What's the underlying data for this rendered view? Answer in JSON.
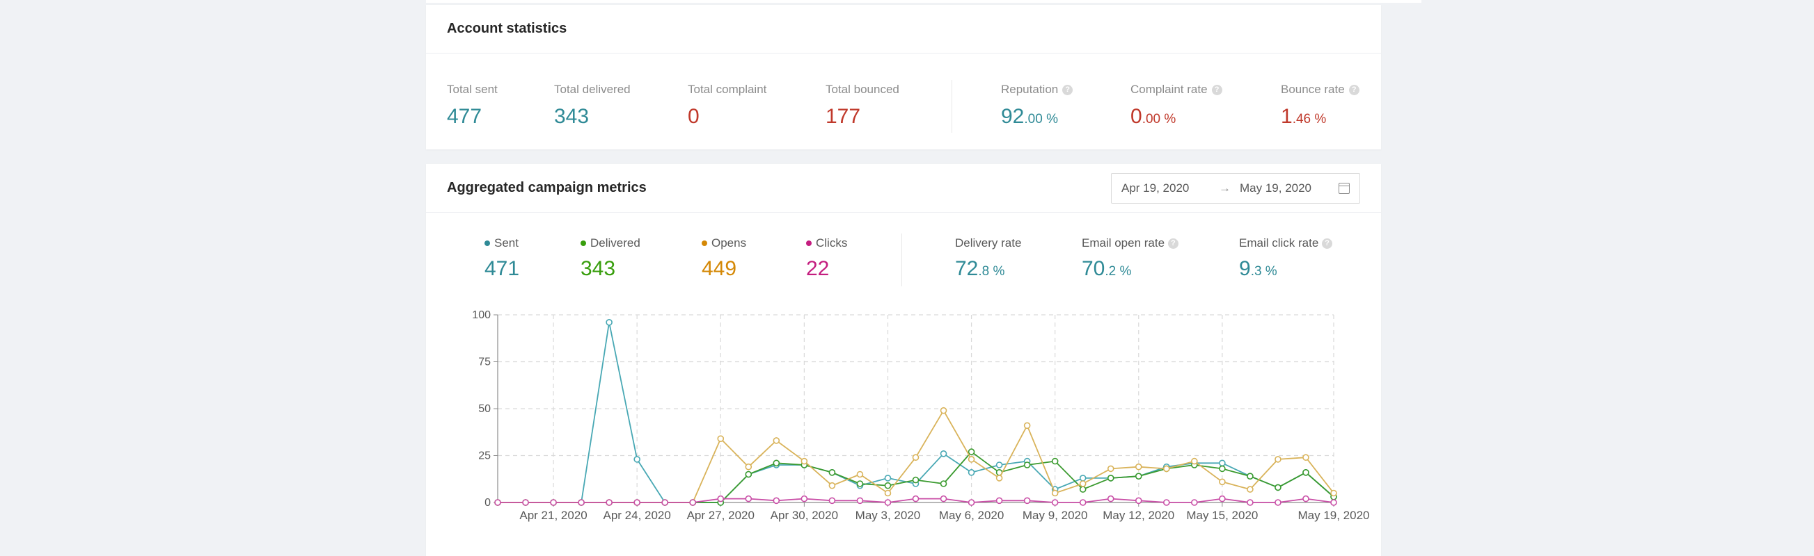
{
  "account_stats": {
    "title": "Account statistics",
    "stats": [
      {
        "label": "Total sent",
        "value": "477",
        "color": "#2f8a96"
      },
      {
        "label": "Total delivered",
        "value": "343",
        "color": "#2f8a96"
      },
      {
        "label": "Total complaint",
        "value": "0",
        "color": "#c0392b"
      },
      {
        "label": "Total bounced",
        "value": "177",
        "color": "#c0392b"
      }
    ],
    "rates": [
      {
        "label": "Reputation",
        "int": "92",
        "frac": ".00 %",
        "color": "#2f8a96",
        "help": "?"
      },
      {
        "label": "Complaint rate",
        "int": "0",
        "frac": ".00 %",
        "color": "#c0392b",
        "help": "?"
      },
      {
        "label": "Bounce rate",
        "int": "1",
        "frac": ".46 %",
        "color": "#c0392b",
        "help": "?"
      }
    ]
  },
  "campaign_metrics": {
    "title": "Aggregated campaign metrics",
    "date_range": {
      "start": "Apr 19, 2020",
      "separator": "→",
      "end": "May 19, 2020"
    },
    "legend": [
      {
        "label": "Sent",
        "value": "471",
        "color": "#2f8a96"
      },
      {
        "label": "Delivered",
        "value": "343",
        "color": "#389e0d"
      },
      {
        "label": "Opens",
        "value": "449",
        "color": "#d48806"
      },
      {
        "label": "Clicks",
        "value": "22",
        "color": "#c41d7f"
      }
    ],
    "rates": [
      {
        "label": "Delivery rate",
        "int": "72",
        "frac": ".8 %",
        "help": ""
      },
      {
        "label": "Email open rate",
        "int": "70",
        "frac": ".2 %",
        "help": "?"
      },
      {
        "label": "Email click rate",
        "int": "9",
        "frac": ".3 %",
        "help": "?"
      }
    ]
  },
  "chart_data": {
    "type": "line",
    "x": [
      "Apr 19, 2020",
      "Apr 20, 2020",
      "Apr 21, 2020",
      "Apr 22, 2020",
      "Apr 23, 2020",
      "Apr 24, 2020",
      "Apr 25, 2020",
      "Apr 26, 2020",
      "Apr 27, 2020",
      "Apr 28, 2020",
      "Apr 29, 2020",
      "Apr 30, 2020",
      "May 1, 2020",
      "May 2, 2020",
      "May 3, 2020",
      "May 4, 2020",
      "May 5, 2020",
      "May 6, 2020",
      "May 7, 2020",
      "May 8, 2020",
      "May 9, 2020",
      "May 10, 2020",
      "May 11, 2020",
      "May 12, 2020",
      "May 13, 2020",
      "May 14, 2020",
      "May 15, 2020",
      "May 16, 2020",
      "May 17, 2020",
      "May 18, 2020",
      "May 19, 2020"
    ],
    "tick_labels": [
      "Apr 21, 2020",
      "Apr 24, 2020",
      "Apr 27, 2020",
      "Apr 30, 2020",
      "May 3, 2020",
      "May 6, 2020",
      "May 9, 2020",
      "May 12, 2020",
      "May 15, 2020",
      "May 19, 2020"
    ],
    "tick_indices": [
      2,
      5,
      8,
      11,
      14,
      17,
      20,
      23,
      26,
      30
    ],
    "yticks": [
      "0",
      "25",
      "50",
      "75",
      "100"
    ],
    "ylim": [
      0,
      100
    ],
    "grid": true,
    "series": [
      {
        "name": "Sent",
        "color": "#48a8b4",
        "values": [
          0,
          0,
          0,
          0,
          96,
          23,
          0,
          0,
          0,
          15,
          20,
          20,
          16,
          9,
          13,
          10,
          26,
          16,
          20,
          22,
          7,
          13,
          13,
          14,
          19,
          21,
          21,
          14,
          8,
          16,
          3
        ]
      },
      {
        "name": "Delivered",
        "color": "#3a9a2e",
        "values": [
          0,
          0,
          0,
          0,
          0,
          0,
          0,
          0,
          0,
          15,
          21,
          20,
          16,
          10,
          9,
          12,
          10,
          27,
          16,
          20,
          22,
          7,
          13,
          14,
          18,
          20,
          18,
          14,
          8,
          16,
          3
        ]
      },
      {
        "name": "Opens",
        "color": "#d9b35a",
        "values": [
          0,
          0,
          0,
          0,
          0,
          0,
          0,
          0,
          34,
          19,
          33,
          22,
          9,
          15,
          5,
          24,
          49,
          23,
          13,
          41,
          5,
          10,
          18,
          19,
          18,
          22,
          11,
          7,
          23,
          24,
          5
        ]
      },
      {
        "name": "Clicks",
        "color": "#c94fa7",
        "values": [
          0,
          0,
          0,
          0,
          0,
          0,
          0,
          0,
          2,
          2,
          1,
          2,
          1,
          1,
          0,
          2,
          2,
          0,
          1,
          1,
          0,
          0,
          2,
          1,
          0,
          0,
          2,
          0,
          0,
          2,
          0
        ]
      }
    ]
  }
}
